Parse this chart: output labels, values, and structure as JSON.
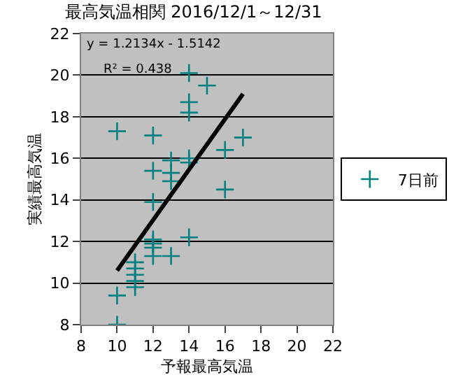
{
  "chart_data": {
    "type": "scatter",
    "title": "最高気温相関 2016/12/1～12/31",
    "xlabel": "予報最高気温",
    "ylabel": "実績最高気温",
    "xlim": [
      8,
      22
    ],
    "xticks": [
      8,
      10,
      12,
      14,
      16,
      18,
      20,
      22
    ],
    "ylim": [
      8,
      22
    ],
    "yticks": [
      8,
      10,
      12,
      14,
      16,
      18,
      20,
      22
    ],
    "grid": "y",
    "legend": "right",
    "annotations": [
      "y = 1.2134x - 1.5142",
      "R² = 0.438"
    ],
    "series": [
      {
        "name": "7日前",
        "color": "#008080",
        "marker": "cross",
        "x": [
          10,
          10,
          10,
          11,
          11,
          11,
          11,
          11,
          12,
          12,
          12,
          12,
          12,
          12,
          12,
          13,
          13,
          13,
          13,
          14,
          14,
          14,
          14,
          14,
          14,
          15,
          16,
          16,
          17
        ],
        "values": [
          17.3,
          9.4,
          8.0,
          11.0,
          10.7,
          10.4,
          10.1,
          9.8,
          17.1,
          15.4,
          13.9,
          12.1,
          11.9,
          11.7,
          11.3,
          15.9,
          15.3,
          14.9,
          11.3,
          20.1,
          18.7,
          18.2,
          16.0,
          15.8,
          12.2,
          19.5,
          16.4,
          14.5,
          17.0
        ]
      },
      {
        "type": "line",
        "color": "#000000",
        "marker": "none",
        "x": [
          10,
          17
        ],
        "values": [
          10.6,
          19.1
        ]
      }
    ]
  }
}
